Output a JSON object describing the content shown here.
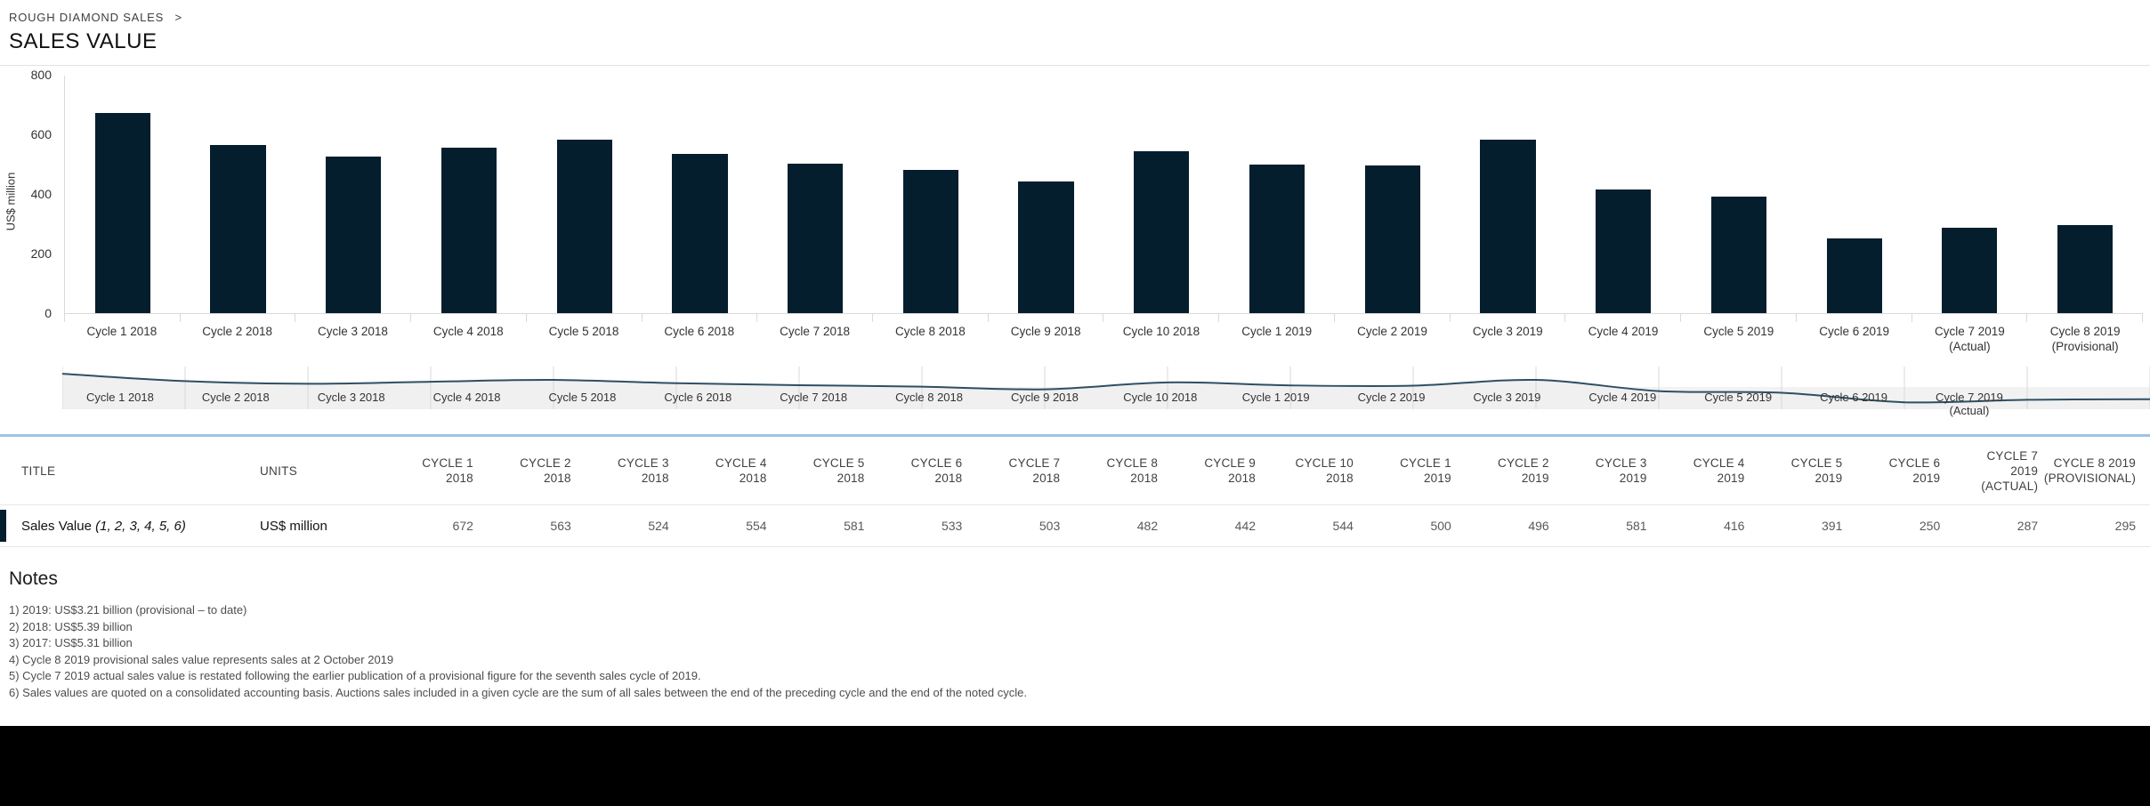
{
  "breadcrumb": {
    "label": "ROUGH DIAMOND SALES",
    "separator": ">"
  },
  "page_title": "SALES VALUE",
  "colors": {
    "bar": "#041e2e",
    "nav_line": "#2e4f63",
    "table_accent_blue": "#9dc3e6",
    "row_marker": "#041e2e"
  },
  "chart_data": {
    "type": "bar",
    "title": "",
    "xlabel": "",
    "ylabel": "US$ million",
    "ylim": [
      0,
      800
    ],
    "yticks": [
      0,
      200,
      400,
      600,
      800
    ],
    "grid": false,
    "categories": [
      "Cycle 1 2018",
      "Cycle 2 2018",
      "Cycle 3 2018",
      "Cycle 4 2018",
      "Cycle 5 2018",
      "Cycle 6 2018",
      "Cycle 7 2018",
      "Cycle 8 2018",
      "Cycle 9 2018",
      "Cycle 10 2018",
      "Cycle 1 2019",
      "Cycle 2 2019",
      "Cycle 3 2019",
      "Cycle 4 2019",
      "Cycle 5 2019",
      "Cycle 6 2019",
      "Cycle 7 2019\n(Actual)",
      "Cycle 8 2019\n(Provisional)"
    ],
    "values": [
      672,
      563,
      524,
      554,
      581,
      533,
      503,
      482,
      442,
      544,
      500,
      496,
      581,
      416,
      391,
      250,
      287,
      295
    ]
  },
  "navigator": {
    "labels": [
      "Cycle 1 2018",
      "Cycle 2 2018",
      "Cycle 3 2018",
      "Cycle 4 2018",
      "Cycle 5 2018",
      "Cycle 6 2018",
      "Cycle 7 2018",
      "Cycle 8 2018",
      "Cycle 9 2018",
      "Cycle 10 2018",
      "Cycle 1 2019",
      "Cycle 2 2019",
      "Cycle 3 2019",
      "Cycle 4 2019",
      "Cycle 5 2019",
      "Cycle 6 2019",
      "Cycle 7 2019\n(Actual)"
    ]
  },
  "table": {
    "header": {
      "title": "TITLE",
      "units": "UNITS"
    },
    "columns": [
      "CYCLE 1\n2018",
      "CYCLE 2\n2018",
      "CYCLE 3\n2018",
      "CYCLE 4\n2018",
      "CYCLE 5\n2018",
      "CYCLE 6\n2018",
      "CYCLE 7\n2018",
      "CYCLE 8\n2018",
      "CYCLE 9\n2018",
      "CYCLE 10\n2018",
      "CYCLE 1\n2019",
      "CYCLE 2\n2019",
      "CYCLE 3\n2019",
      "CYCLE 4\n2019",
      "CYCLE 5\n2019",
      "CYCLE 6\n2019",
      "CYCLE 7\n2019\n(ACTUAL)",
      "CYCLE 8 2019\n(PROVISIONAL)"
    ],
    "row": {
      "title": "Sales Value",
      "title_suffix": "(1, 2, 3, 4, 5, 6)",
      "units": "US$ million",
      "values": [
        672,
        563,
        524,
        554,
        581,
        533,
        503,
        482,
        442,
        544,
        500,
        496,
        581,
        416,
        391,
        250,
        287,
        295
      ]
    }
  },
  "notes": {
    "heading": "Notes",
    "items": [
      "1) 2019: US$3.21 billion (provisional – to date)",
      "2) 2018: US$5.39 billion",
      "3) 2017: US$5.31 billion",
      "4) Cycle 8 2019 provisional sales value represents sales at 2 October 2019",
      "5) Cycle 7 2019 actual sales value is restated following the earlier publication of a provisional figure for the seventh sales cycle of 2019.",
      "6) Sales values are quoted on a consolidated accounting basis. Auctions sales included in a given cycle are the sum of all sales between the end of the preceding cycle and the end of the noted cycle."
    ]
  }
}
